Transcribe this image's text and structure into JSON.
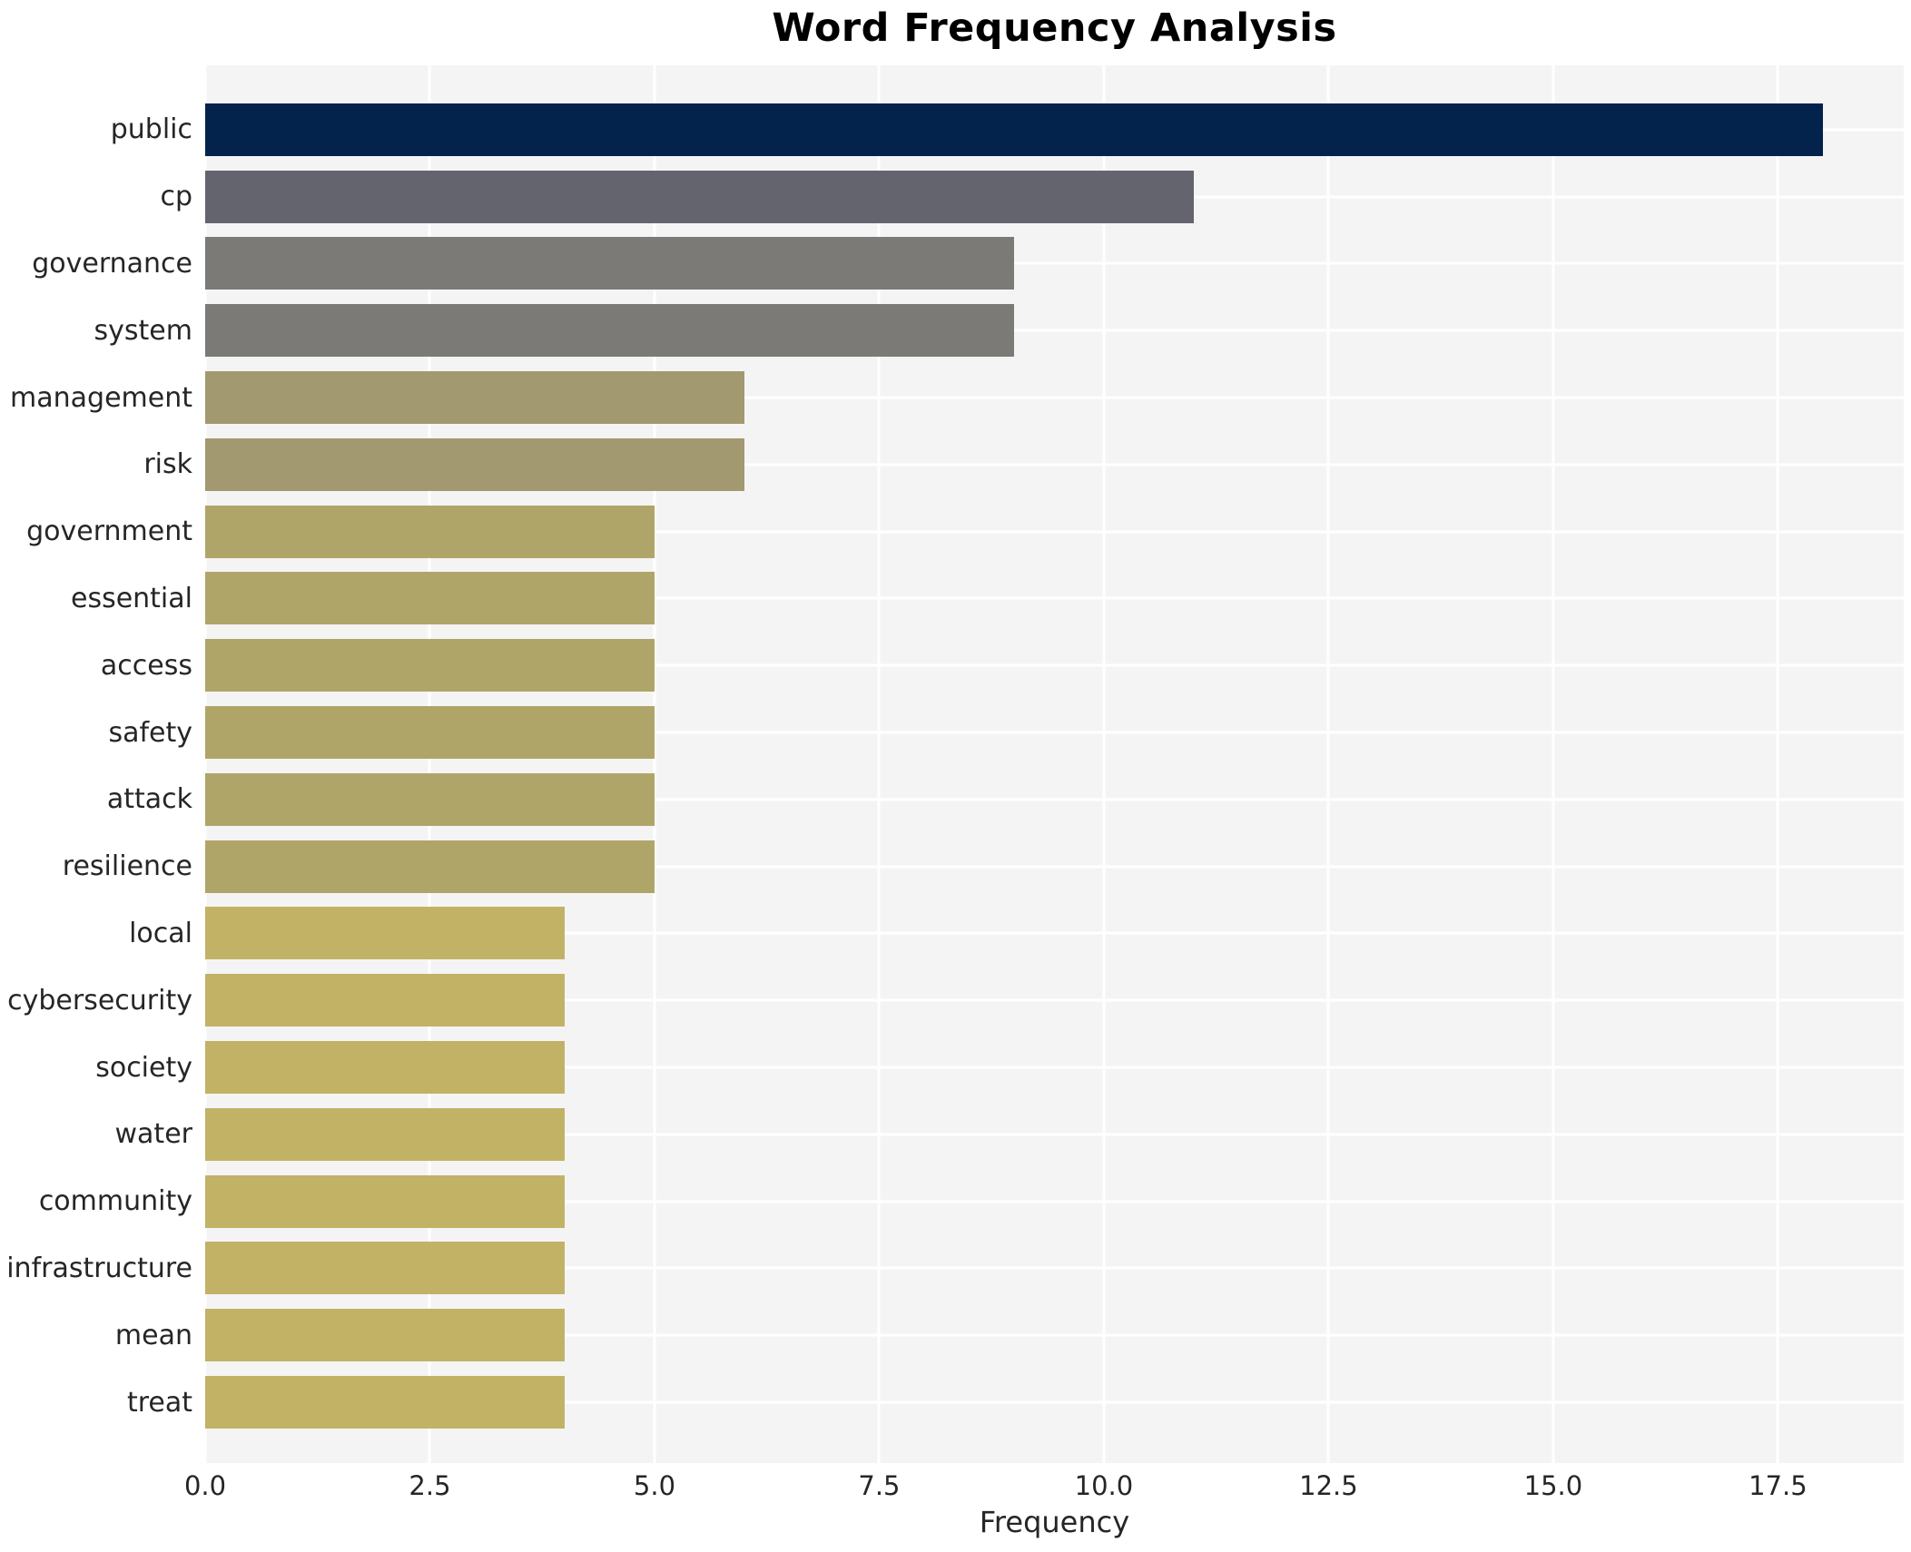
{
  "chart_data": {
    "type": "bar",
    "orientation": "horizontal",
    "title": "Word Frequency Analysis",
    "xlabel": "Frequency",
    "ylabel": "",
    "categories": [
      "public",
      "cp",
      "governance",
      "system",
      "management",
      "risk",
      "government",
      "essential",
      "access",
      "safety",
      "attack",
      "resilience",
      "local",
      "cybersecurity",
      "society",
      "water",
      "community",
      "infrastructure",
      "mean",
      "treat"
    ],
    "values": [
      18,
      11,
      9,
      9,
      6,
      6,
      5,
      5,
      5,
      5,
      5,
      5,
      4,
      4,
      4,
      4,
      4,
      4,
      4,
      4
    ],
    "bar_colors": [
      "#03234c",
      "#64646f",
      "#7b7a76",
      "#7b7a76",
      "#a29971",
      "#a29971",
      "#b0a569",
      "#b0a569",
      "#b0a569",
      "#b0a569",
      "#b0a569",
      "#b0a569",
      "#c1b266",
      "#c1b266",
      "#c1b266",
      "#c1b266",
      "#c1b266",
      "#c1b266",
      "#c1b266",
      "#c1b266"
    ],
    "xticks": [
      0.0,
      2.5,
      5.0,
      7.5,
      10.0,
      12.5,
      15.0,
      17.5
    ],
    "xtick_labels": [
      "0.0",
      "2.5",
      "5.0",
      "7.5",
      "10.0",
      "12.5",
      "15.0",
      "17.5"
    ],
    "xlim": [
      0,
      18.9
    ],
    "grid": true,
    "legend": false,
    "plot_background_color": "#f5f4f4",
    "grid_color": "#ffffff",
    "title_color": "#000000",
    "tick_color": "#262626"
  }
}
